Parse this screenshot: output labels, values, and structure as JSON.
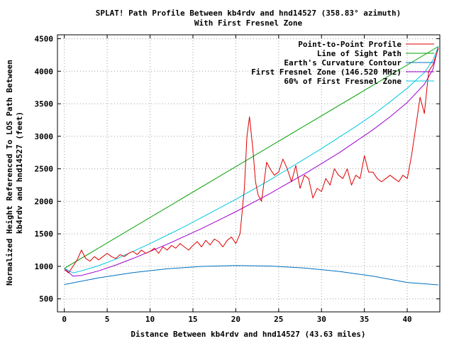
{
  "chart_data": {
    "type": "line",
    "title_line1": "SPLAT! Path Profile Between kb4rdv and hnd14527 (358.83° azimuth)",
    "title_line2": "With First Fresnel Zone",
    "xlabel": "Distance Between kb4rdv and hnd14527 (43.63 miles)",
    "ylabel_line1": "Normalized Height Referenced To LOS Path Between",
    "ylabel_line2": "kb4rdv and hnd14527 (feet)",
    "xlim": [
      -0.8,
      43.8
    ],
    "ylim": [
      300,
      4560
    ],
    "xticks": [
      0,
      5,
      10,
      15,
      20,
      25,
      30,
      35,
      40
    ],
    "yticks": [
      500,
      1000,
      1500,
      2000,
      2500,
      3000,
      3500,
      4000,
      4500
    ],
    "grid": true,
    "legend_position": "top-right",
    "colors": {
      "profile": "#dd0000",
      "los": "#00a000",
      "earth": "#0070c0",
      "fresnel": "#a000d0",
      "fresnel60": "#00c8e0"
    },
    "legend": [
      {
        "label": "Point-to-Point Profile",
        "key": "profile"
      },
      {
        "label": "Line of Sight Path",
        "key": "los"
      },
      {
        "label": "Earth's Curvature Contour",
        "key": "earth"
      },
      {
        "label": "First Fresnel Zone (146.520 MHz)",
        "key": "fresnel"
      },
      {
        "label": "60% of First Fresnel Zone",
        "key": "fresnel60"
      }
    ],
    "series": [
      {
        "key": "profile",
        "x": [
          0,
          0.5,
          1,
          1.5,
          2,
          2.5,
          3,
          3.5,
          4,
          4.5,
          5,
          5.5,
          6,
          6.5,
          7,
          7.5,
          8,
          8.5,
          9,
          9.5,
          10,
          10.5,
          11,
          11.5,
          12,
          12.5,
          13,
          13.5,
          14,
          14.5,
          15,
          15.5,
          16,
          16.5,
          17,
          17.5,
          18,
          18.5,
          19,
          19.5,
          20,
          20.5,
          21,
          21.3,
          21.6,
          22,
          22.3,
          22.6,
          23,
          23.3,
          23.6,
          24,
          24.5,
          25,
          25.5,
          26,
          26.5,
          27,
          27.5,
          28,
          28.5,
          29,
          29.5,
          30,
          30.5,
          31,
          31.5,
          32,
          32.5,
          33,
          33.5,
          34,
          34.5,
          35,
          35.5,
          36,
          36.5,
          37,
          37.5,
          38,
          38.5,
          39,
          39.5,
          40,
          40.5,
          41,
          41.5,
          42,
          42.5,
          43,
          43.63
        ],
        "y": [
          950,
          900,
          1000,
          1100,
          1250,
          1120,
          1080,
          1150,
          1100,
          1150,
          1200,
          1150,
          1120,
          1180,
          1150,
          1200,
          1230,
          1180,
          1250,
          1200,
          1230,
          1280,
          1200,
          1300,
          1250,
          1320,
          1280,
          1350,
          1300,
          1250,
          1320,
          1380,
          1300,
          1400,
          1330,
          1420,
          1380,
          1300,
          1400,
          1450,
          1350,
          1500,
          2200,
          3000,
          3300,
          2800,
          2300,
          2100,
          2000,
          2300,
          2600,
          2500,
          2400,
          2450,
          2650,
          2500,
          2300,
          2550,
          2200,
          2400,
          2350,
          2050,
          2200,
          2150,
          2350,
          2250,
          2500,
          2400,
          2350,
          2500,
          2250,
          2400,
          2350,
          2700,
          2450,
          2450,
          2350,
          2300,
          2350,
          2400,
          2350,
          2300,
          2400,
          2350,
          2700,
          3150,
          3600,
          3350,
          4000,
          4100,
          4350
        ]
      },
      {
        "key": "los",
        "x": [
          0,
          43.63
        ],
        "y": [
          970,
          4380
        ]
      },
      {
        "key": "earth",
        "x": [
          0,
          4,
          8,
          12,
          16,
          20,
          24,
          28,
          32,
          36,
          40,
          43.63
        ],
        "y": [
          720,
          823,
          904,
          962,
          999,
          1013,
          1005,
          975,
          923,
          849,
          752,
          715
        ]
      },
      {
        "key": "fresnel",
        "x": [
          0,
          1,
          2,
          4,
          6,
          8,
          10,
          12,
          14,
          16,
          18,
          20,
          22,
          24,
          26,
          28,
          30,
          32,
          34,
          36,
          38,
          40,
          42,
          43,
          43.63
        ],
        "y": [
          970,
          850,
          860,
          930,
          1020,
          1120,
          1230,
          1340,
          1460,
          1580,
          1710,
          1840,
          1980,
          2120,
          2270,
          2420,
          2580,
          2740,
          2920,
          3100,
          3300,
          3520,
          3800,
          4030,
          4380
        ]
      },
      {
        "key": "fresnel60",
        "x": [
          0,
          1,
          2,
          4,
          6,
          8,
          10,
          12,
          14,
          16,
          18,
          20,
          22,
          24,
          26,
          28,
          30,
          32,
          34,
          36,
          38,
          40,
          42,
          43,
          43.63
        ],
        "y": [
          970,
          900,
          930,
          1010,
          1110,
          1230,
          1350,
          1480,
          1610,
          1750,
          1890,
          2030,
          2180,
          2330,
          2490,
          2650,
          2810,
          2980,
          3150,
          3330,
          3530,
          3740,
          3980,
          4170,
          4380
        ]
      }
    ]
  }
}
